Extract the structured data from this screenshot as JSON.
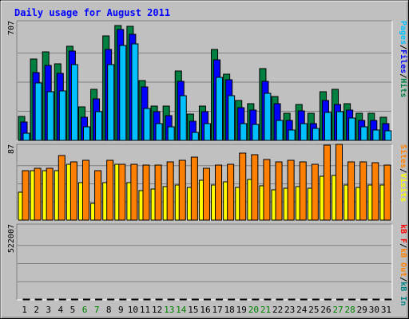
{
  "chart_data": {
    "type": "bar",
    "title": "Daily usage for August 2011",
    "days": [
      "1",
      "2",
      "3",
      "4",
      "5",
      "6",
      "7",
      "8",
      "9",
      "10",
      "11",
      "12",
      "13",
      "14",
      "15",
      "16",
      "17",
      "18",
      "19",
      "20",
      "21",
      "22",
      "23",
      "24",
      "25",
      "26",
      "27",
      "28",
      "29",
      "30",
      "31"
    ],
    "weekend_days": [
      "6",
      "7",
      "13",
      "14",
      "20",
      "21",
      "27",
      "28"
    ],
    "panels": [
      {
        "axis_label": "707",
        "ymax": 707,
        "series": [
          {
            "name": "Hits",
            "color": "#008040",
            "values": [
              147,
              492,
              536,
              467,
              570,
              202,
              309,
              634,
              699,
              692,
              364,
              208,
              208,
              420,
              158,
              208,
              550,
              404,
              240,
              224,
              436,
              264,
              164,
              220,
              164,
              296,
              308,
              224,
              164,
              164,
              140
            ]
          },
          {
            "name": "Files",
            "color": "#0000FF",
            "values": [
              111,
              411,
              456,
              407,
              540,
              142,
              253,
              550,
              672,
              643,
              323,
              172,
              152,
              360,
              118,
              172,
              487,
              367,
              200,
              184,
              356,
              224,
              123,
              180,
              104,
              240,
              218,
              183,
              123,
              123,
              100
            ]
          },
          {
            "name": "Pages",
            "color": "#00C0FF",
            "values": [
              43,
              350,
              296,
              302,
              459,
              82,
              172,
              460,
              574,
              584,
              193,
              102,
              82,
              270,
              48,
              102,
              383,
              269,
              102,
              96,
              286,
              122,
              62,
              100,
              74,
              170,
              175,
              137,
              82,
              62,
              60
            ]
          }
        ]
      },
      {
        "axis_label": "87",
        "ymax": 87,
        "series": [
          {
            "name": "Visits",
            "color": "#FFFF00",
            "values": [
              33,
              59,
              59,
              59,
              67,
              45,
              20,
              45,
              67,
              45,
              35,
              37,
              40,
              42,
              39,
              48,
              42,
              46,
              39,
              49,
              41,
              36,
              38,
              40,
              38,
              53,
              54,
              42,
              39,
              42,
              42
            ]
          },
          {
            "name": "Sites",
            "color": "#FF8000",
            "values": [
              59,
              62,
              62,
              77,
              70,
              72,
              59,
              72,
              67,
              67,
              66,
              66,
              70,
              72,
              76,
              62,
              66,
              67,
              80,
              78,
              73,
              70,
              72,
              70,
              67,
              90,
              91,
              70,
              70,
              69,
              66
            ]
          }
        ]
      },
      {
        "axis_label": "522007",
        "ymax": 522007,
        "series": [
          {
            "name": "kB In",
            "color": "#008080",
            "values": [
              0,
              0,
              0,
              0,
              0,
              0,
              0,
              0,
              0,
              0,
              0,
              0,
              0,
              0,
              0,
              0,
              0,
              0,
              0,
              0,
              0,
              0,
              0,
              0,
              0,
              0,
              0,
              0,
              0,
              0,
              0
            ]
          },
          {
            "name": "kB Out",
            "color": "#FF8000",
            "values": [
              0,
              0,
              0,
              0,
              0,
              0,
              0,
              0,
              0,
              0,
              0,
              0,
              0,
              0,
              0,
              0,
              0,
              0,
              0,
              0,
              0,
              0,
              0,
              0,
              0,
              0,
              0,
              0,
              0,
              0,
              0
            ]
          },
          {
            "name": "kB F",
            "color": "#FF0000",
            "values": [
              440,
              474,
              405,
              405,
              405,
              372,
              405,
              414,
              440,
              269,
              405,
              405,
              405,
              369,
              373,
              390,
              405,
              500,
              340,
              340,
              405,
              319,
              300,
              340,
              300,
              340,
              385,
              385,
              360,
              310,
              200
            ]
          }
        ]
      }
    ]
  }
}
